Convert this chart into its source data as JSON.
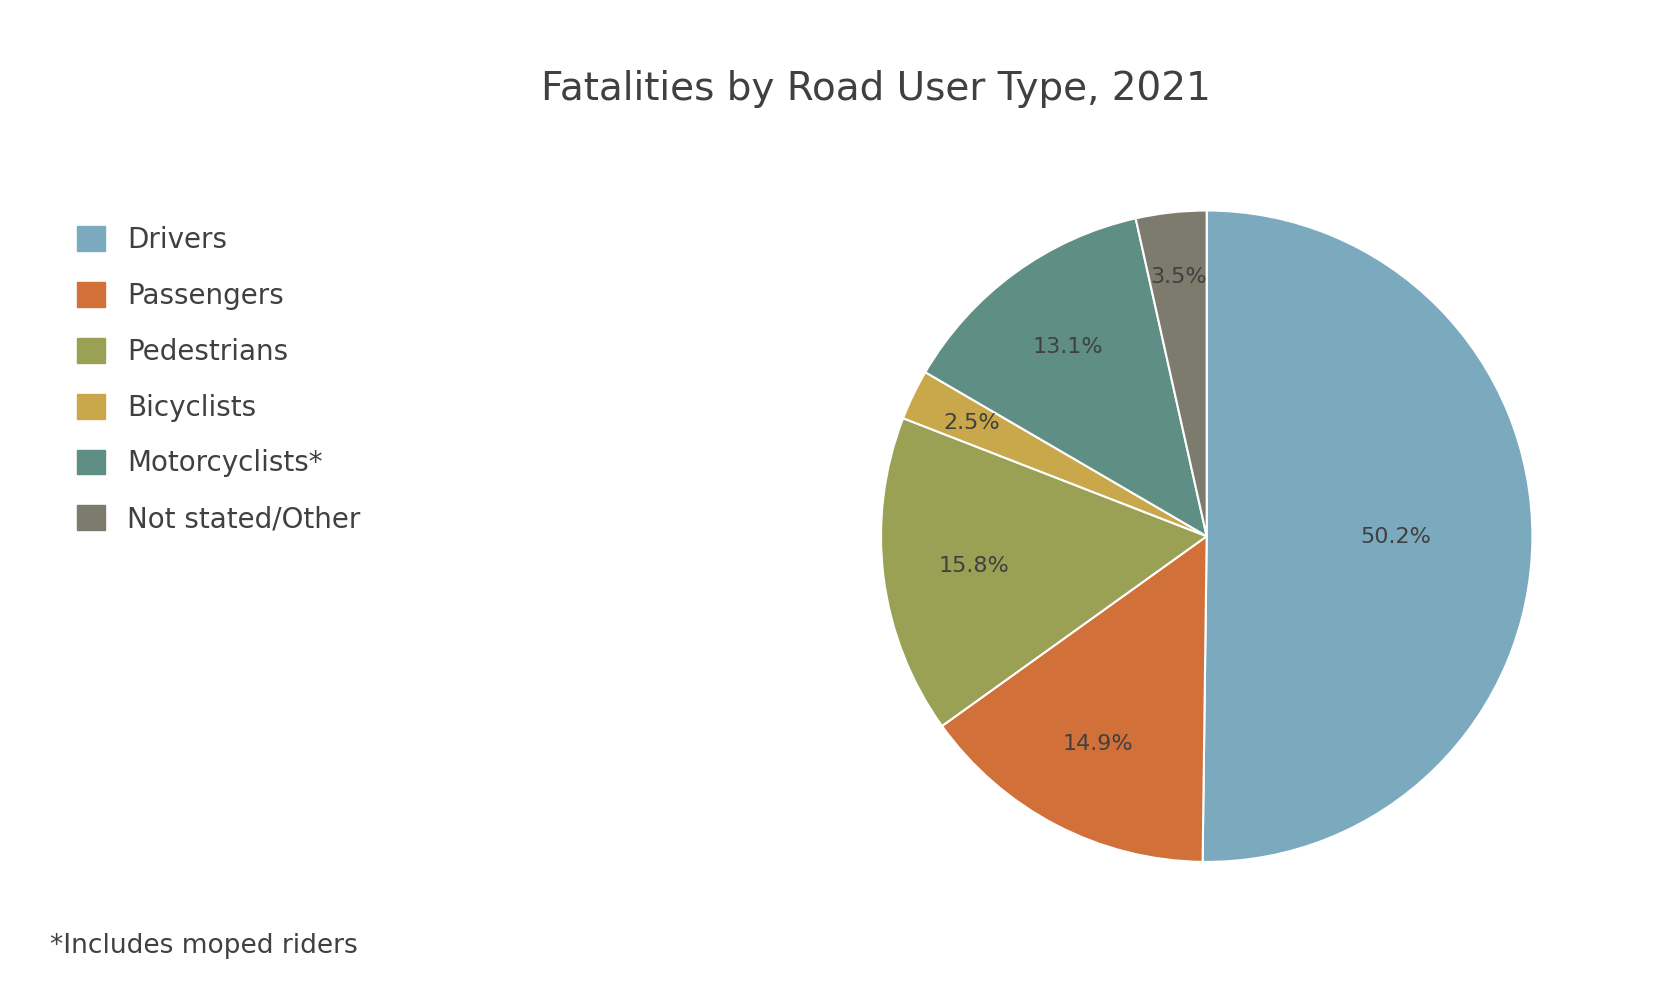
{
  "title": "Fatalities by Road User Type, 2021",
  "labels": [
    "Drivers",
    "Passengers",
    "Pedestrians",
    "Bicyclists",
    "Motorcyclists*",
    "Not stated/Other"
  ],
  "values": [
    50.2,
    14.9,
    15.8,
    2.5,
    13.1,
    3.5
  ],
  "colors": [
    "#7BAABF",
    "#D2703A",
    "#9AA155",
    "#C8A84B",
    "#5F8E85",
    "#7D7B6E"
  ],
  "pct_labels": [
    "50.2%",
    "14.9%",
    "15.8%",
    "2.5%",
    "13.1%",
    "3.5%"
  ],
  "footnote": "*Includes moped riders",
  "title_fontsize": 28,
  "label_fontsize": 16,
  "legend_fontsize": 20,
  "footnote_fontsize": 19,
  "background_color": "#FFFFFF",
  "text_color": "#404040",
  "startangle": 90
}
